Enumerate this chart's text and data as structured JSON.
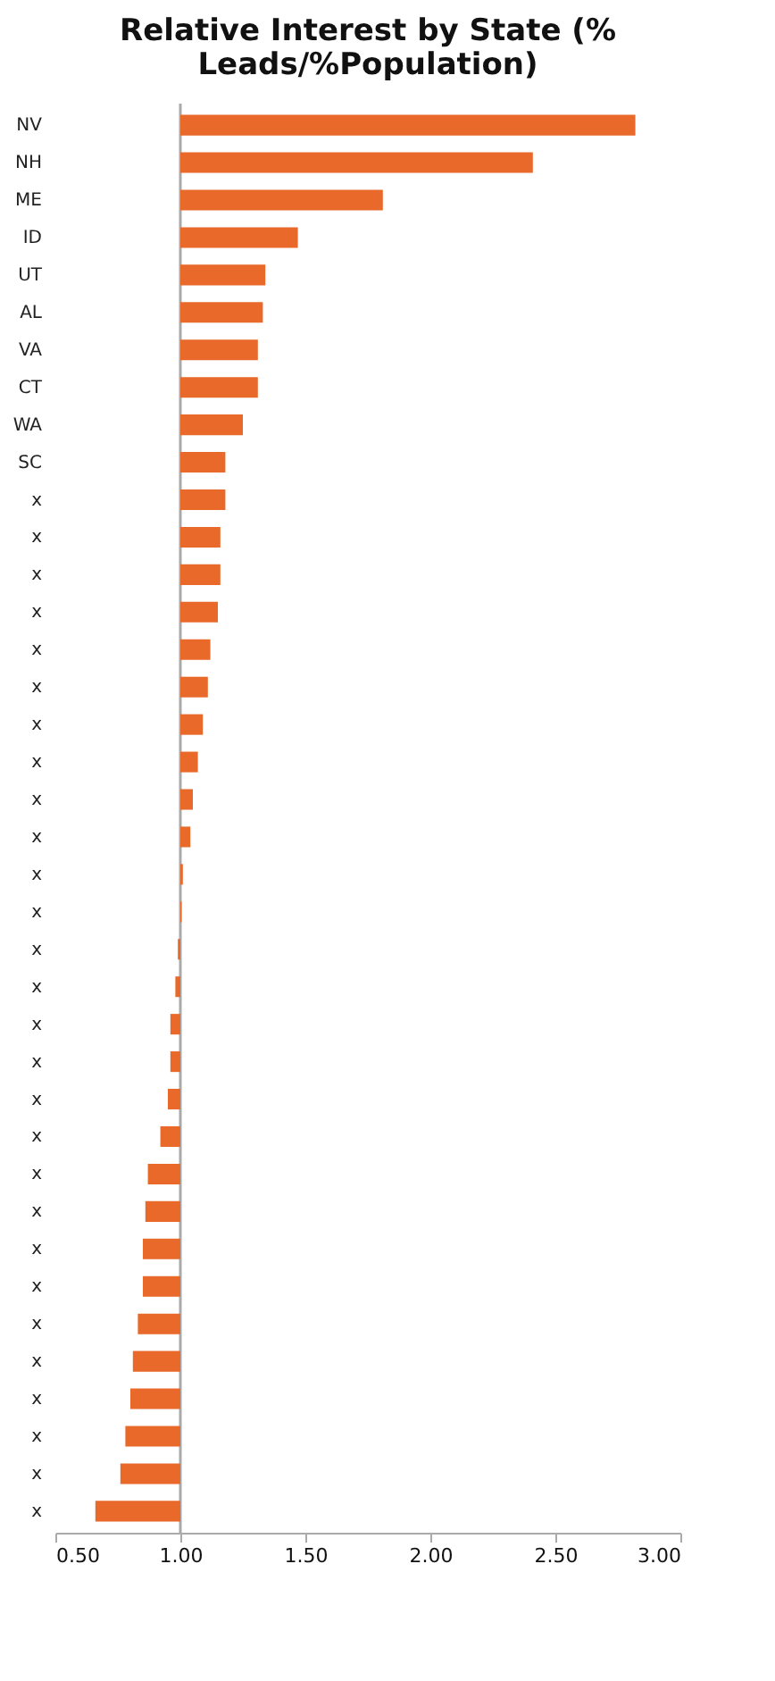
{
  "chart_data": {
    "type": "bar",
    "orientation": "horizontal",
    "title": "Relative Interest by State (% Leads/%Population)",
    "categories": [
      "NV",
      "NH",
      "ME",
      "ID",
      "UT",
      "AL",
      "VA",
      "CT",
      "WA",
      "SC",
      "x",
      "x",
      "x",
      "x",
      "x",
      "x",
      "x",
      "x",
      "x",
      "x",
      "x",
      "x",
      "x",
      "x",
      "x",
      "x",
      "x",
      "x",
      "x",
      "x",
      "x",
      "x",
      "x",
      "x",
      "x",
      "x",
      "x",
      "x"
    ],
    "base": [
      1,
      1,
      1,
      1,
      1,
      1,
      1,
      1,
      1,
      1,
      1,
      1,
      1,
      1,
      1,
      1,
      1,
      1,
      1,
      1,
      1,
      1,
      1,
      1,
      1,
      1,
      1,
      1,
      1,
      1,
      1,
      1,
      1,
      1,
      1,
      1,
      1,
      1
    ],
    "values": [
      1.82,
      1.41,
      0.81,
      0.47,
      0.34,
      0.33,
      0.31,
      0.31,
      0.25,
      0.18,
      0.18,
      0.16,
      0.16,
      0.15,
      0.12,
      0.11,
      0.09,
      0.07,
      0.05,
      0.04,
      0.01,
      0.005,
      -0.01,
      -0.02,
      -0.04,
      -0.04,
      -0.05,
      -0.08,
      -0.13,
      -0.14,
      -0.15,
      -0.15,
      -0.17,
      -0.19,
      -0.2,
      -0.22,
      -0.24,
      -0.34
    ],
    "color": "#e8692a",
    "xlim": [
      0.5,
      3.0
    ],
    "xticks": [
      {
        "value": 0.5,
        "label": "0.50"
      },
      {
        "value": 1.0,
        "label": "1.00"
      },
      {
        "value": 1.5,
        "label": "1.50"
      },
      {
        "value": 2.0,
        "label": "2.00"
      },
      {
        "value": 2.5,
        "label": "2.50"
      },
      {
        "value": 3.0,
        "label": "3.00"
      }
    ],
    "ref_lines": [
      {
        "axis": "x",
        "value": 1.0,
        "color": "#aaaaaa"
      }
    ],
    "grid": false
  }
}
